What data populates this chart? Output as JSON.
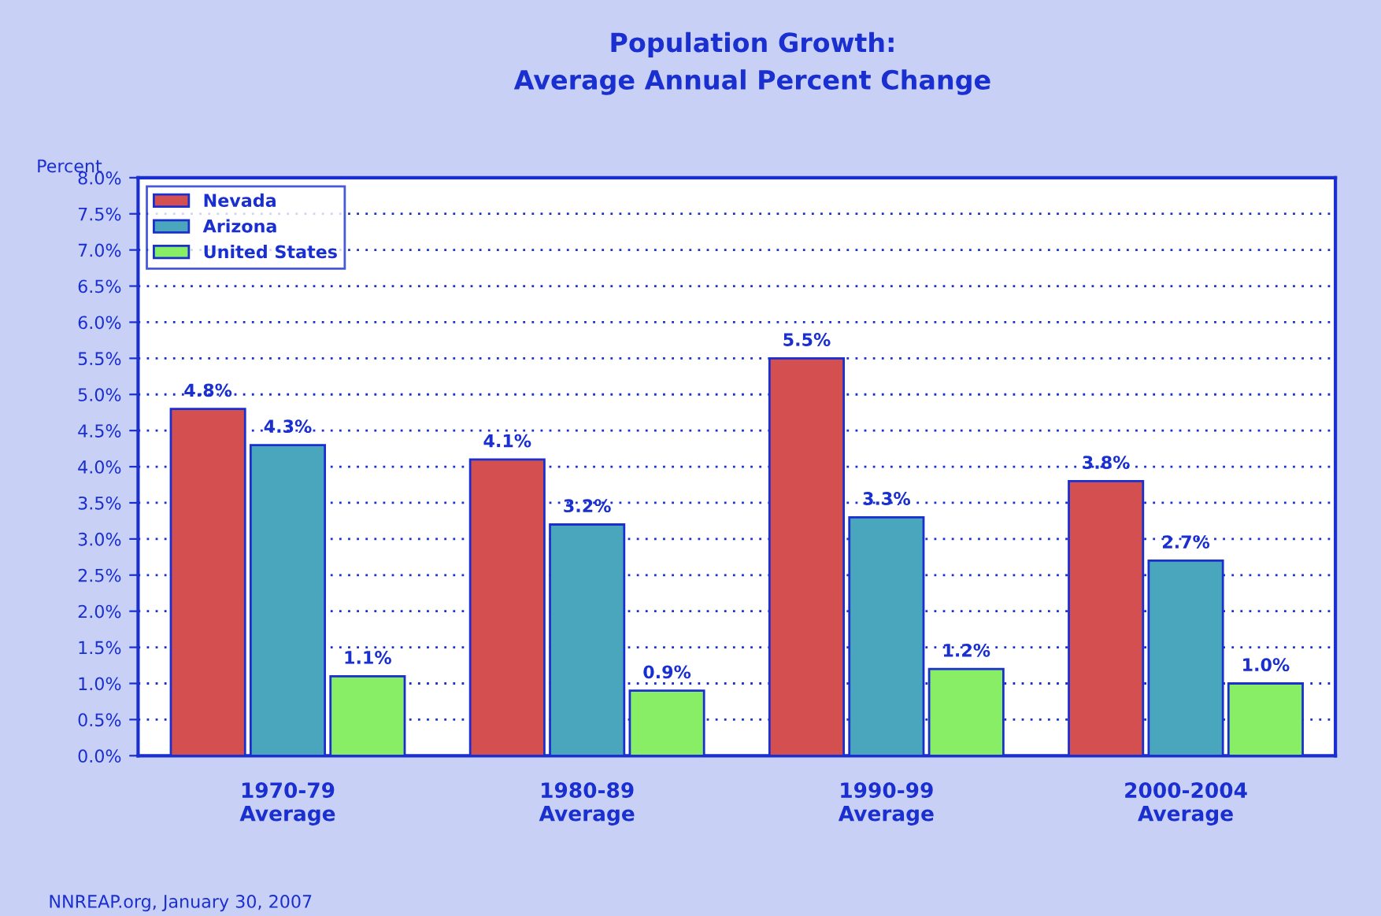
{
  "chart_data": {
    "type": "bar",
    "title": "Population Growth:\nAverage Annual Percent Change",
    "ylabel": "Percent",
    "categories": [
      "1970-79\nAverage",
      "1980-89\nAverage",
      "1990-99\nAverage",
      "2000-2004\nAverage"
    ],
    "series": [
      {
        "name": "Nevada",
        "color": "#d45050",
        "values": [
          4.8,
          4.1,
          5.5,
          3.8
        ],
        "value_labels": [
          "4.8%",
          "4.1%",
          "5.5%",
          "3.8%"
        ]
      },
      {
        "name": "Arizona",
        "color": "#4aa6bc",
        "values": [
          4.3,
          3.2,
          3.3,
          2.7
        ],
        "value_labels": [
          "4.3%",
          "3.2%",
          "3.3%",
          "2.7%"
        ]
      },
      {
        "name": "United States",
        "color": "#88ee66",
        "values": [
          1.1,
          0.9,
          1.2,
          1.0
        ],
        "value_labels": [
          "1.1%",
          "0.9%",
          "1.2%",
          "1.0%"
        ]
      }
    ],
    "ylim": [
      0,
      8
    ],
    "yticks": [
      {
        "value": 0,
        "label": "0.0%"
      },
      {
        "value": 0.5,
        "label": "0.5%"
      },
      {
        "value": 1,
        "label": "1.0%"
      },
      {
        "value": 1.5,
        "label": "1.5%"
      },
      {
        "value": 2,
        "label": "2.0%"
      },
      {
        "value": 2.5,
        "label": "2.5%"
      },
      {
        "value": 3,
        "label": "3.0%"
      },
      {
        "value": 3.5,
        "label": "3.5%"
      },
      {
        "value": 4,
        "label": "4.0%"
      },
      {
        "value": 4.5,
        "label": "4.5%"
      },
      {
        "value": 5,
        "label": "5.0%"
      },
      {
        "value": 5.5,
        "label": "5.5%"
      },
      {
        "value": 6,
        "label": "6.0%"
      },
      {
        "value": 6.5,
        "label": "6.5%"
      },
      {
        "value": 7,
        "label": "7.0%"
      },
      {
        "value": 7.5,
        "label": "7.5%"
      },
      {
        "value": 8,
        "label": "8.0%"
      }
    ],
    "grid": "y",
    "legend": "top left",
    "annotations": [
      "NNREAP.org, January 30, 2007"
    ]
  }
}
